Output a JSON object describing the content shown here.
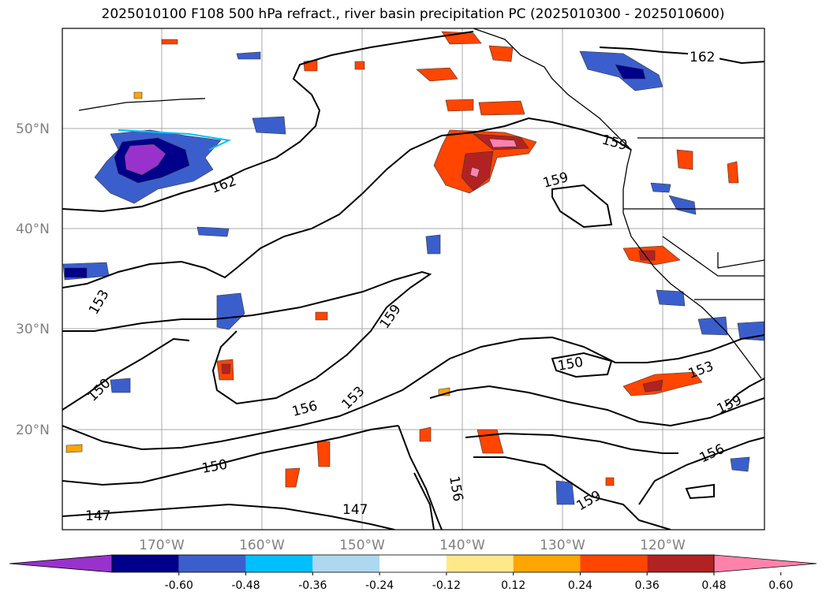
{
  "title": "2025010100 F108 500 hPa refract., river basin precipitation PC (2025010300 - 2025010600)",
  "lat_labels": [
    "50°N",
    "40°N",
    "30°N",
    "20°N"
  ],
  "lon_labels": [
    "170°W",
    "160°W",
    "150°W",
    "140°W",
    "130°W",
    "120°W"
  ],
  "contour_labels": [
    "162",
    "162",
    "159",
    "159",
    "159",
    "159",
    "159",
    "153",
    "153",
    "153",
    "156",
    "156",
    "156",
    "150",
    "150",
    "150",
    "147",
    "147"
  ],
  "colorbar": {
    "ticks": [
      "-0.60",
      "-0.48",
      "-0.36",
      "-0.24",
      "-0.12",
      "0.12",
      "0.24",
      "0.36",
      "0.48",
      "0.60"
    ],
    "colors": [
      "#9932cc",
      "#00008b",
      "#3a5fcd",
      "#00bfff",
      "#add8f0",
      "#ffffff",
      "#ffe88a",
      "#ffa500",
      "#ff4500",
      "#b22222",
      "#ff82ab"
    ]
  }
}
